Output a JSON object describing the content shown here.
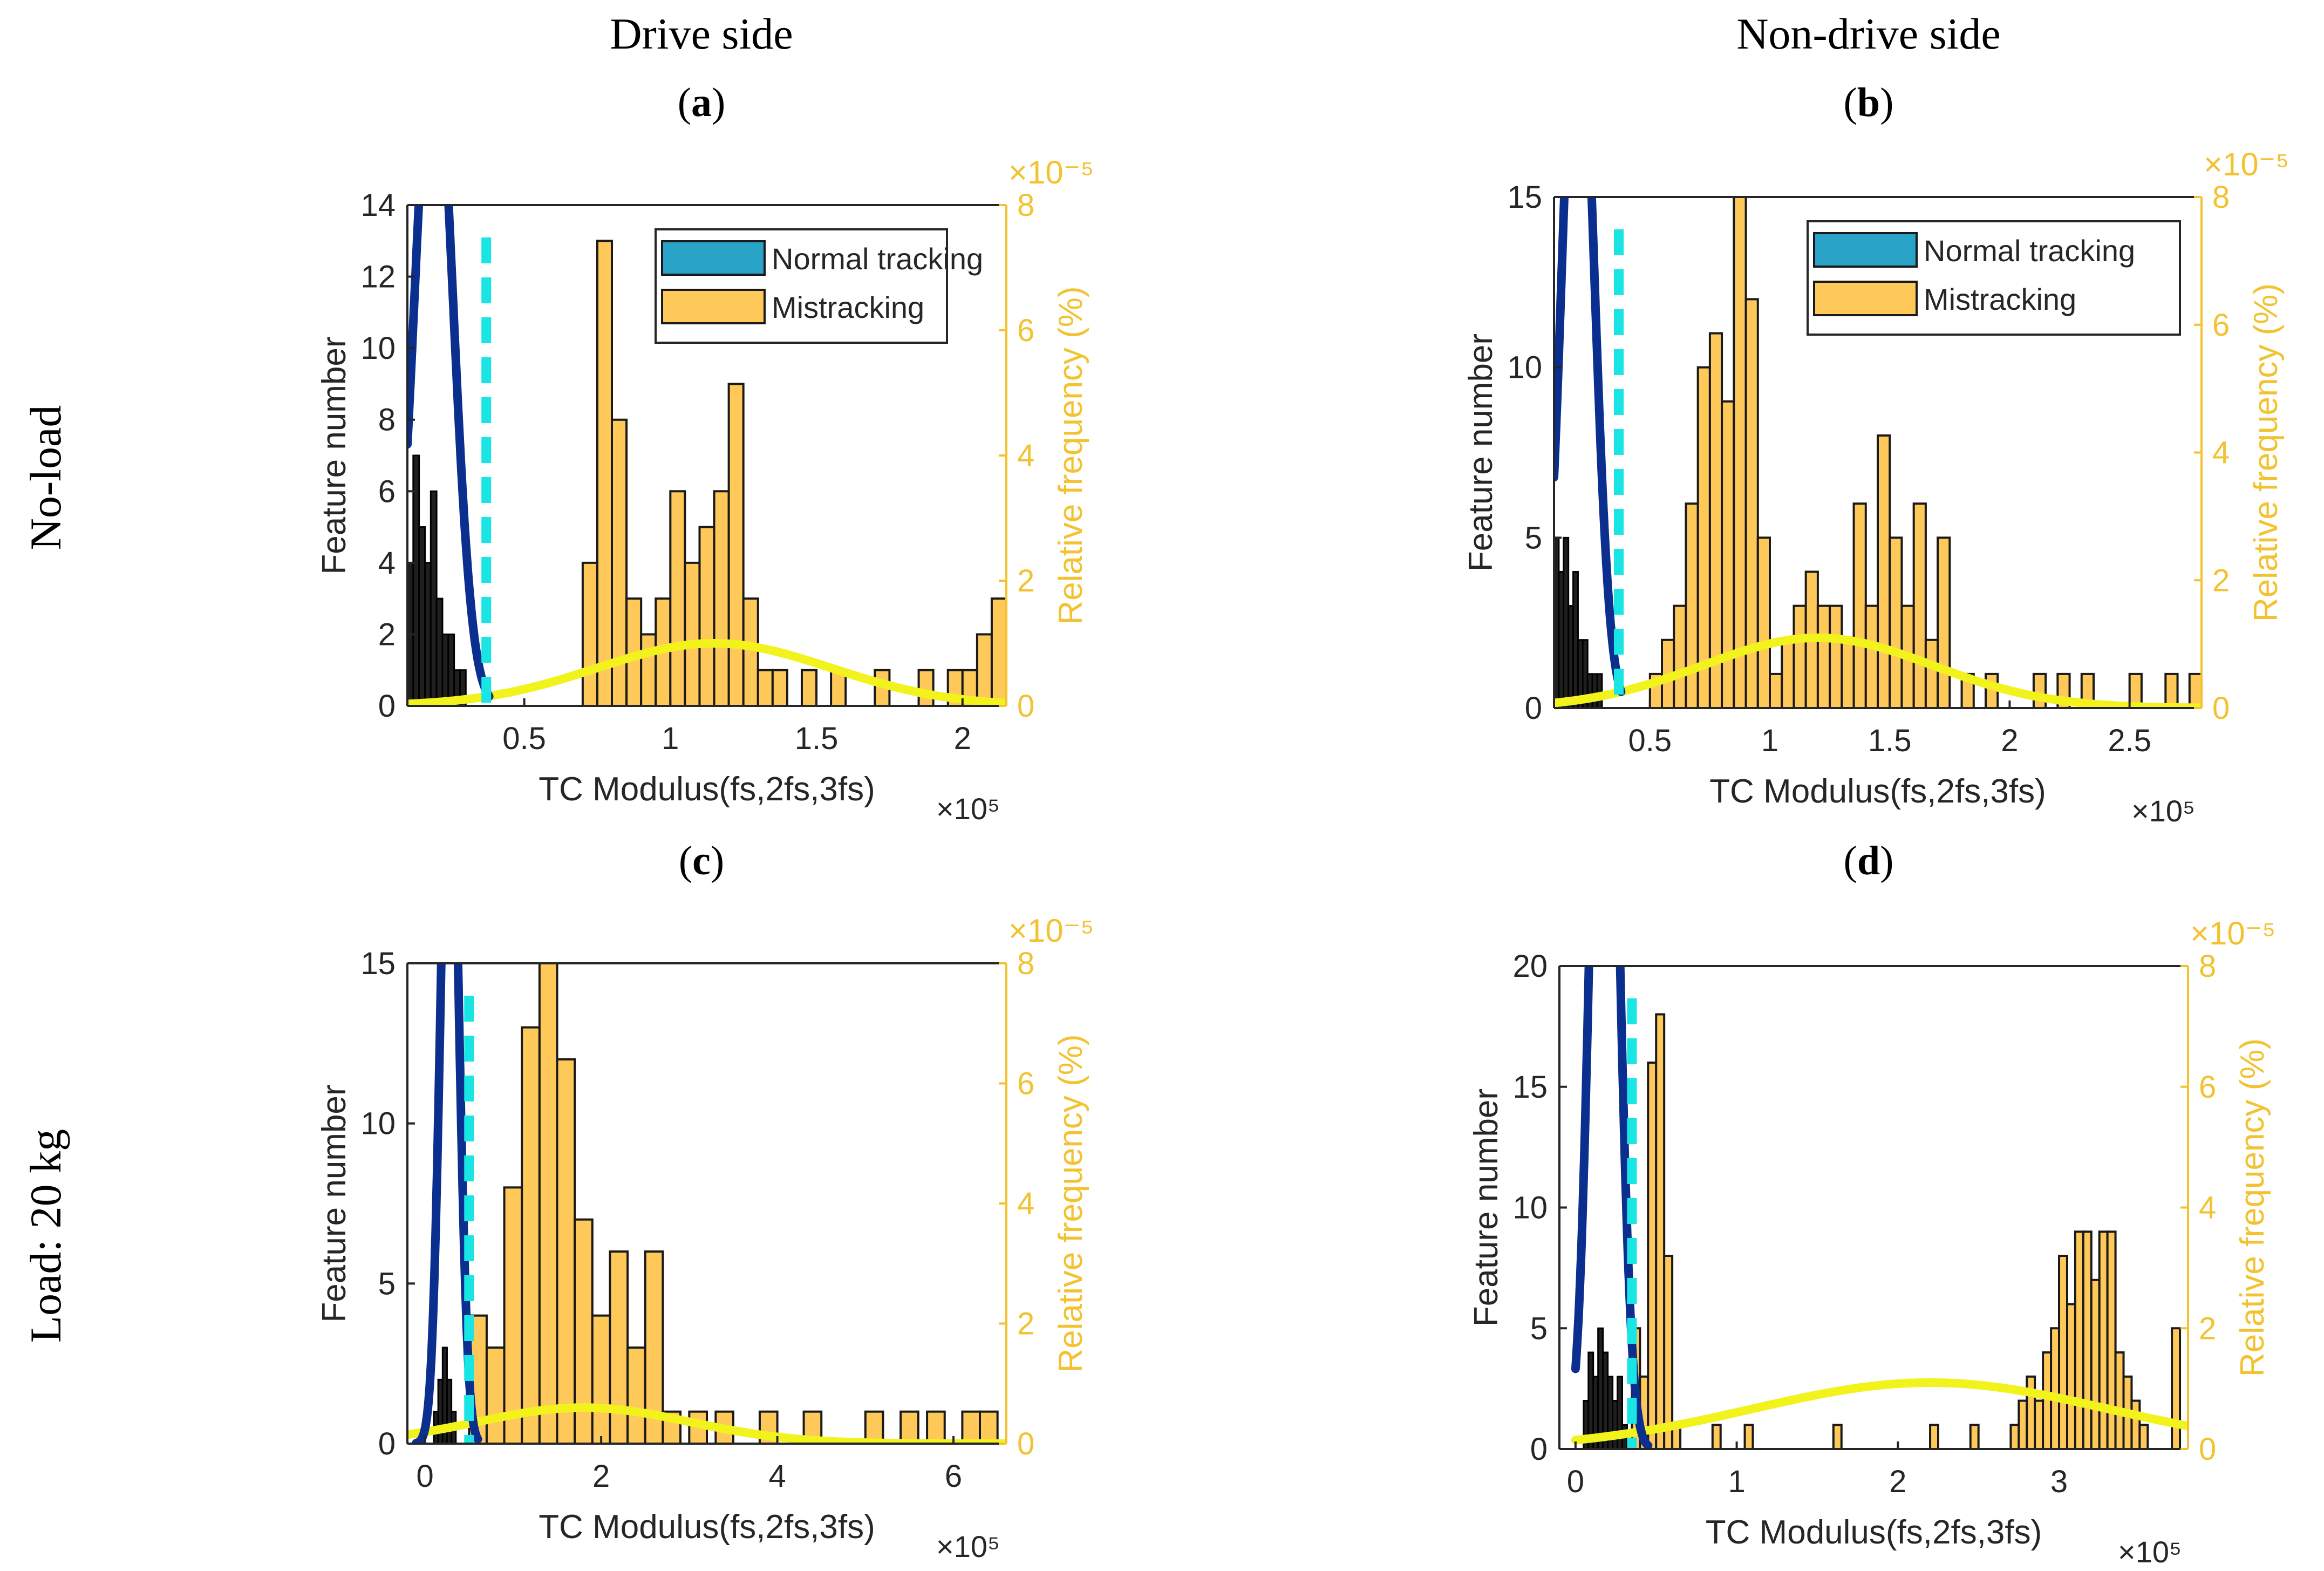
{
  "figure": {
    "column_titles": [
      "Drive side",
      "Non-drive side"
    ],
    "row_titles": [
      "No-load",
      "Load: 20 kg"
    ],
    "panel_letters": [
      "a",
      "b",
      "c",
      "d"
    ],
    "legend_labels": [
      "Normal tracking",
      "Mistracking"
    ],
    "exponent_right": "×10⁻⁵",
    "exponent_x": "×10⁵",
    "colors": {
      "normal_bar": "#1f1f1f",
      "normal_legend": "#2aa3c9",
      "normal_curve": "#0a2f8f",
      "mistrack_bar": "#ffc95a",
      "mistrack_curve": "#f2f21c",
      "threshold": "#19e5e5",
      "right_axis": "#f2c230"
    }
  },
  "chart_data": [
    {
      "id": "a",
      "type": "bar",
      "xlabel": "TC Modulus(fs,2fs,3fs)",
      "ylabel": "Feature number",
      "ylabel_right": "Relative frequency (%)",
      "xlim": [
        0.1,
        2.15
      ],
      "ylim": [
        0,
        14
      ],
      "ylim_right": [
        0,
        8
      ],
      "xticks": [
        0.5,
        1,
        1.5,
        2
      ],
      "yticks": [
        0,
        2,
        4,
        6,
        8,
        10,
        12,
        14
      ],
      "yticks_right": [
        0,
        2,
        4,
        6,
        8
      ],
      "legend": true,
      "threshold_x": 0.37,
      "normal": {
        "bins": [
          [
            0.1,
            0.12,
            4
          ],
          [
            0.12,
            0.14,
            7
          ],
          [
            0.14,
            0.16,
            5
          ],
          [
            0.16,
            0.18,
            4
          ],
          [
            0.18,
            0.2,
            6
          ],
          [
            0.2,
            0.22,
            3
          ],
          [
            0.22,
            0.24,
            2
          ],
          [
            0.24,
            0.26,
            2
          ],
          [
            0.26,
            0.28,
            1
          ],
          [
            0.28,
            0.3,
            1
          ]
        ],
        "curve": {
          "mu": 0.19,
          "sigma": 0.065,
          "peak": 10.9,
          "x0": 0.1,
          "x1": 0.38
        }
      },
      "mistrack": {
        "bins": [
          [
            0.7,
            0.75,
            4
          ],
          [
            0.75,
            0.8,
            13
          ],
          [
            0.8,
            0.85,
            8
          ],
          [
            0.85,
            0.9,
            3
          ],
          [
            0.9,
            0.95,
            2
          ],
          [
            0.95,
            1.0,
            3
          ],
          [
            1.0,
            1.05,
            6
          ],
          [
            1.05,
            1.1,
            4
          ],
          [
            1.1,
            1.15,
            5
          ],
          [
            1.15,
            1.2,
            6
          ],
          [
            1.2,
            1.25,
            9
          ],
          [
            1.25,
            1.3,
            3
          ],
          [
            1.3,
            1.35,
            1
          ],
          [
            1.35,
            1.4,
            1
          ],
          [
            1.45,
            1.5,
            1
          ],
          [
            1.55,
            1.6,
            1
          ],
          [
            1.7,
            1.75,
            1
          ],
          [
            1.85,
            1.9,
            1
          ],
          [
            1.95,
            2.0,
            1
          ],
          [
            2.0,
            2.05,
            1
          ],
          [
            2.05,
            2.1,
            2
          ],
          [
            2.1,
            2.15,
            3
          ]
        ],
        "curve": {
          "mu": 1.15,
          "sigma": 0.4,
          "peak": 1.0,
          "x0": 0.1,
          "x1": 2.15
        }
      }
    },
    {
      "id": "b",
      "type": "bar",
      "xlabel": "TC Modulus(fs,2fs,3fs)",
      "ylabel": "Feature number",
      "ylabel_right": "Relative frequency (%)",
      "xlim": [
        0.1,
        2.8
      ],
      "ylim": [
        0,
        15
      ],
      "ylim_right": [
        0,
        8
      ],
      "xticks": [
        0.5,
        1,
        1.5,
        2,
        2.5
      ],
      "yticks": [
        0,
        5,
        10,
        15
      ],
      "yticks_right": [
        0,
        2,
        4,
        6,
        8
      ],
      "legend": true,
      "threshold_x": 0.37,
      "normal": {
        "bins": [
          [
            0.1,
            0.12,
            5
          ],
          [
            0.12,
            0.14,
            4
          ],
          [
            0.14,
            0.16,
            5
          ],
          [
            0.16,
            0.18,
            3
          ],
          [
            0.18,
            0.2,
            4
          ],
          [
            0.2,
            0.22,
            2
          ],
          [
            0.22,
            0.24,
            2
          ],
          [
            0.24,
            0.26,
            1
          ],
          [
            0.26,
            0.28,
            1
          ],
          [
            0.28,
            0.3,
            1
          ]
        ],
        "curve": {
          "mu": 0.2,
          "sigma": 0.065,
          "peak": 11.8,
          "x0": 0.1,
          "x1": 0.38
        }
      },
      "mistrack": {
        "bins": [
          [
            0.5,
            0.55,
            1
          ],
          [
            0.55,
            0.6,
            2
          ],
          [
            0.6,
            0.65,
            3
          ],
          [
            0.65,
            0.7,
            6
          ],
          [
            0.7,
            0.75,
            10
          ],
          [
            0.75,
            0.8,
            11
          ],
          [
            0.8,
            0.85,
            9
          ],
          [
            0.85,
            0.9,
            15
          ],
          [
            0.9,
            0.95,
            12
          ],
          [
            0.95,
            1.0,
            5
          ],
          [
            1.0,
            1.05,
            1
          ],
          [
            1.05,
            1.1,
            2
          ],
          [
            1.1,
            1.15,
            3
          ],
          [
            1.15,
            1.2,
            4
          ],
          [
            1.2,
            1.25,
            3
          ],
          [
            1.25,
            1.3,
            3
          ],
          [
            1.3,
            1.35,
            2
          ],
          [
            1.35,
            1.4,
            6
          ],
          [
            1.4,
            1.45,
            3
          ],
          [
            1.45,
            1.5,
            8
          ],
          [
            1.5,
            1.55,
            5
          ],
          [
            1.55,
            1.6,
            3
          ],
          [
            1.6,
            1.65,
            6
          ],
          [
            1.65,
            1.7,
            2
          ],
          [
            1.7,
            1.75,
            5
          ],
          [
            1.8,
            1.85,
            1
          ],
          [
            1.9,
            1.95,
            1
          ],
          [
            2.1,
            2.15,
            1
          ],
          [
            2.2,
            2.25,
            1
          ],
          [
            2.3,
            2.35,
            1
          ],
          [
            2.5,
            2.55,
            1
          ],
          [
            2.65,
            2.7,
            1
          ],
          [
            2.75,
            2.8,
            1
          ]
        ],
        "curve": {
          "mu": 1.2,
          "sigma": 0.48,
          "peak": 1.1,
          "x0": 0.1,
          "x1": 2.8
        }
      }
    },
    {
      "id": "c",
      "type": "bar",
      "xlabel": "TC Modulus(fs,2fs,3fs)",
      "ylabel": "Feature number",
      "ylabel_right": "Relative frequency (%)",
      "xlim": [
        -0.2,
        6.6
      ],
      "ylim": [
        0,
        15
      ],
      "ylim_right": [
        0,
        8
      ],
      "xticks": [
        0,
        2,
        4,
        6
      ],
      "yticks": [
        0,
        5,
        10,
        15
      ],
      "yticks_right": [
        0,
        2,
        4,
        6,
        8
      ],
      "legend": false,
      "threshold_x": 0.5,
      "normal": {
        "bins": [
          [
            0.1,
            0.15,
            1
          ],
          [
            0.15,
            0.2,
            2
          ],
          [
            0.2,
            0.25,
            3
          ],
          [
            0.25,
            0.3,
            2
          ],
          [
            0.3,
            0.35,
            1
          ]
        ],
        "curve": {
          "mu": 0.28,
          "sigma": 0.1,
          "peak": 12.6,
          "x0": -0.1,
          "x1": 0.6
        }
      },
      "mistrack": {
        "bins": [
          [
            0.5,
            0.7,
            4
          ],
          [
            0.7,
            0.9,
            3
          ],
          [
            0.9,
            1.1,
            8
          ],
          [
            1.1,
            1.3,
            13
          ],
          [
            1.3,
            1.5,
            15
          ],
          [
            1.5,
            1.7,
            12
          ],
          [
            1.7,
            1.9,
            7
          ],
          [
            1.9,
            2.1,
            4
          ],
          [
            2.1,
            2.3,
            6
          ],
          [
            2.3,
            2.5,
            3
          ],
          [
            2.5,
            2.7,
            6
          ],
          [
            2.7,
            2.9,
            1
          ],
          [
            3.0,
            3.2,
            1
          ],
          [
            3.3,
            3.5,
            1
          ],
          [
            3.8,
            4.0,
            1
          ],
          [
            4.3,
            4.5,
            1
          ],
          [
            5.0,
            5.2,
            1
          ],
          [
            5.4,
            5.6,
            1
          ],
          [
            5.7,
            5.9,
            1
          ],
          [
            6.1,
            6.3,
            1
          ],
          [
            6.3,
            6.5,
            1
          ]
        ],
        "curve": {
          "mu": 1.8,
          "sigma": 1.2,
          "peak": 0.6,
          "x0": -0.2,
          "x1": 6.6
        }
      }
    },
    {
      "id": "d",
      "type": "bar",
      "xlabel": "TC Modulus(fs,2fs,3fs)",
      "ylabel": "Feature number",
      "ylabel_right": "Relative frequency (%)",
      "xlim": [
        -0.1,
        3.8
      ],
      "ylim": [
        0,
        20
      ],
      "ylim_right": [
        0,
        8
      ],
      "xticks": [
        0,
        1,
        2,
        3
      ],
      "yticks": [
        0,
        5,
        10,
        15,
        20
      ],
      "yticks_right": [
        0,
        2,
        4,
        6,
        8
      ],
      "legend": false,
      "threshold_x": 0.35,
      "normal": {
        "bins": [
          [
            0.05,
            0.08,
            2
          ],
          [
            0.08,
            0.11,
            4
          ],
          [
            0.11,
            0.14,
            3
          ],
          [
            0.14,
            0.17,
            5
          ],
          [
            0.17,
            0.2,
            4
          ],
          [
            0.2,
            0.23,
            3
          ],
          [
            0.23,
            0.26,
            2
          ],
          [
            0.26,
            0.29,
            3
          ],
          [
            0.29,
            0.32,
            1
          ]
        ],
        "curve": {
          "mu": 0.18,
          "sigma": 0.08,
          "peak": 16.7,
          "x0": 0.0,
          "x1": 0.45
        }
      },
      "mistrack": {
        "bins": [
          [
            0.35,
            0.4,
            5
          ],
          [
            0.4,
            0.45,
            3
          ],
          [
            0.45,
            0.5,
            16
          ],
          [
            0.5,
            0.55,
            18
          ],
          [
            0.55,
            0.6,
            8
          ],
          [
            0.6,
            0.65,
            1
          ],
          [
            0.85,
            0.9,
            1
          ],
          [
            1.05,
            1.1,
            1
          ],
          [
            1.6,
            1.65,
            1
          ],
          [
            2.2,
            2.25,
            1
          ],
          [
            2.45,
            2.5,
            1
          ],
          [
            2.7,
            2.75,
            1
          ],
          [
            2.75,
            2.8,
            2
          ],
          [
            2.8,
            2.85,
            3
          ],
          [
            2.85,
            2.9,
            2
          ],
          [
            2.9,
            2.95,
            4
          ],
          [
            2.95,
            3.0,
            5
          ],
          [
            3.0,
            3.05,
            8
          ],
          [
            3.05,
            3.1,
            6
          ],
          [
            3.1,
            3.15,
            9
          ],
          [
            3.15,
            3.2,
            9
          ],
          [
            3.2,
            3.25,
            7
          ],
          [
            3.25,
            3.3,
            9
          ],
          [
            3.3,
            3.35,
            9
          ],
          [
            3.35,
            3.4,
            4
          ],
          [
            3.4,
            3.45,
            3
          ],
          [
            3.45,
            3.5,
            2
          ],
          [
            3.5,
            3.55,
            1
          ],
          [
            3.7,
            3.75,
            5
          ]
        ],
        "curve": {
          "mu": 2.2,
          "sigma": 1.1,
          "peak": 1.1,
          "x0": 0.0,
          "x1": 3.8
        }
      }
    }
  ]
}
